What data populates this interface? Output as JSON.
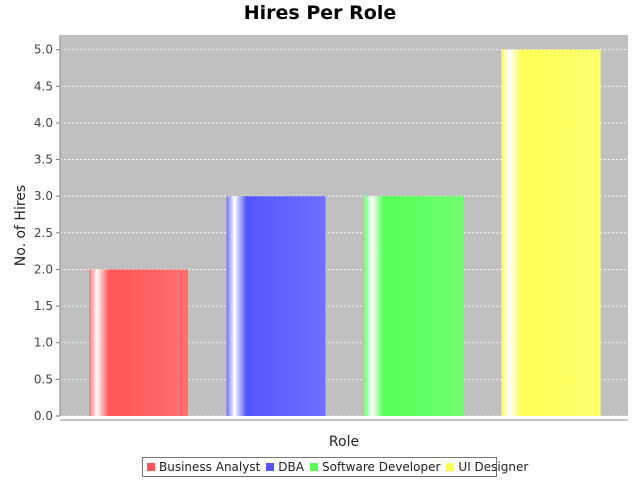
{
  "chart_data": {
    "type": "bar",
    "title": "Hires Per Role",
    "xlabel": "Role",
    "ylabel": "No. of Hires",
    "ylim": [
      0,
      5.2
    ],
    "yticks": [
      "0.0",
      "0.5",
      "1.0",
      "1.5",
      "2.0",
      "2.5",
      "3.0",
      "3.5",
      "4.0",
      "4.5",
      "5.0"
    ],
    "grid": true,
    "legend_position": "bottom",
    "background": "#c0c0c0",
    "series": [
      {
        "name": "Business Analyst",
        "values": [
          2
        ],
        "color": "#ff5555"
      },
      {
        "name": "DBA",
        "values": [
          3
        ],
        "color": "#5555ff"
      },
      {
        "name": "Software Developer",
        "values": [
          3
        ],
        "color": "#55ff55"
      },
      {
        "name": "UI Designer",
        "values": [
          5
        ],
        "color": "#ffff55"
      }
    ]
  }
}
